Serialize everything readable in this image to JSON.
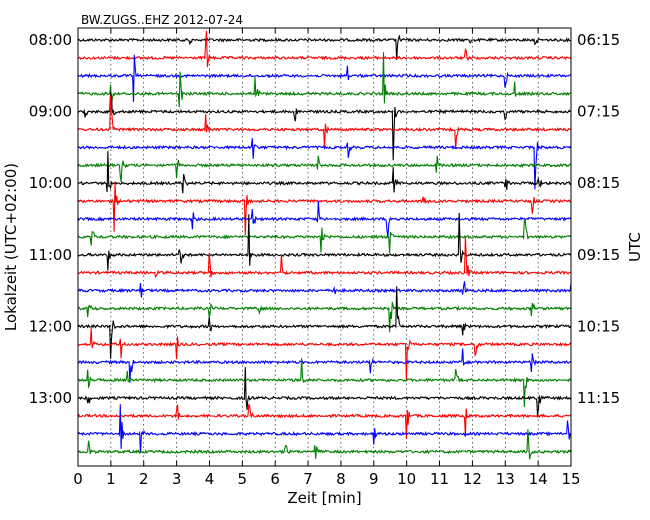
{
  "chart_data": {
    "type": "line",
    "title": "BW.ZUGS..EHZ 2012-07-24",
    "xlabel": "Zeit  [min]",
    "ylabel_left": "Lokalzeit (UTC+02:00)",
    "ylabel_right": "UTC",
    "xlim": [
      0,
      15
    ],
    "x_ticks": [
      0,
      1,
      2,
      3,
      4,
      5,
      6,
      7,
      8,
      9,
      10,
      11,
      12,
      13,
      14,
      15
    ],
    "x_tick_labels": [
      "0",
      "1",
      "2",
      "3",
      "4",
      "5",
      "6",
      "7",
      "8",
      "9",
      "10",
      "11",
      "12",
      "13",
      "14",
      "15"
    ],
    "y_tick_labels_left": [
      "08:00",
      "09:00",
      "10:00",
      "11:00",
      "12:00",
      "13:00"
    ],
    "y_tick_labels_right": [
      "06:15",
      "07:15",
      "08:15",
      "09:15",
      "10:15",
      "11:15"
    ],
    "grid": true,
    "trace_minutes": 15,
    "line_colors": [
      "#000000",
      "#ff0000",
      "#0000ff",
      "#008000"
    ],
    "traces_first_local_time": "08:00",
    "traces_last_local_time": "13:45",
    "events": [
      [
        {
          "x": 3.4,
          "a": 0.3
        },
        {
          "x": 9.7,
          "a": 0.7
        },
        {
          "x": 11.9,
          "a": 0.25
        },
        {
          "x": 13.9,
          "a": 0.3
        }
      ],
      [
        {
          "x": 3.9,
          "a": 1.2
        },
        {
          "x": 11.8,
          "a": 0.3
        }
      ],
      [
        {
          "x": 1.7,
          "a": 1.0
        },
        {
          "x": 8.2,
          "a": 0.5
        },
        {
          "x": 13.0,
          "a": 0.4
        }
      ],
      [
        {
          "x": 1.0,
          "a": 0.6
        },
        {
          "x": 3.1,
          "a": 1.5
        },
        {
          "x": 5.4,
          "a": 1.2
        },
        {
          "x": 9.3,
          "a": 1.2
        },
        {
          "x": 13.3,
          "a": 0.4
        }
      ],
      [
        {
          "x": 0.2,
          "a": 0.6
        },
        {
          "x": 1.0,
          "a": 1.2
        },
        {
          "x": 6.6,
          "a": 0.4
        },
        {
          "x": 9.6,
          "a": 1.4
        },
        {
          "x": 13.0,
          "a": 0.6
        }
      ],
      [
        {
          "x": 1.0,
          "a": 1.1
        },
        {
          "x": 3.9,
          "a": 0.5
        },
        {
          "x": 7.5,
          "a": 0.8
        },
        {
          "x": 11.5,
          "a": 0.6
        }
      ],
      [
        {
          "x": 5.3,
          "a": 1.2
        },
        {
          "x": 8.2,
          "a": 0.7
        },
        {
          "x": 13.9,
          "a": 1.3
        }
      ],
      [
        {
          "x": 1.3,
          "a": 0.7
        },
        {
          "x": 3.0,
          "a": 0.6
        },
        {
          "x": 7.3,
          "a": 0.5
        },
        {
          "x": 10.9,
          "a": 0.6
        }
      ],
      [
        {
          "x": 0.9,
          "a": 1.3
        },
        {
          "x": 3.2,
          "a": 0.6
        },
        {
          "x": 9.6,
          "a": 0.8
        },
        {
          "x": 13.0,
          "a": 0.6
        },
        {
          "x": 14.0,
          "a": 0.8
        }
      ],
      [
        {
          "x": 1.1,
          "a": 1.1
        },
        {
          "x": 5.1,
          "a": 1.0
        },
        {
          "x": 10.5,
          "a": 0.8
        },
        {
          "x": 13.8,
          "a": 0.8
        }
      ],
      [
        {
          "x": 3.5,
          "a": 0.4
        },
        {
          "x": 5.3,
          "a": 1.3
        },
        {
          "x": 7.3,
          "a": 0.7
        },
        {
          "x": 9.4,
          "a": 1.1
        }
      ],
      [
        {
          "x": 0.4,
          "a": 0.9
        },
        {
          "x": 7.4,
          "a": 0.7
        },
        {
          "x": 9.5,
          "a": 1.0
        },
        {
          "x": 13.6,
          "a": 0.6
        }
      ],
      [
        {
          "x": 0.9,
          "a": 1.0
        },
        {
          "x": 3.1,
          "a": 1.2
        },
        {
          "x": 5.2,
          "a": 1.2
        },
        {
          "x": 11.6,
          "a": 1.3
        }
      ],
      [
        {
          "x": 2.3,
          "a": 0.5
        },
        {
          "x": 4.0,
          "a": 0.8
        },
        {
          "x": 6.2,
          "a": 0.6
        },
        {
          "x": 11.8,
          "a": 1.2
        }
      ],
      [
        {
          "x": 1.9,
          "a": 0.6
        },
        {
          "x": 7.8,
          "a": 0.4
        },
        {
          "x": 11.7,
          "a": 1.2
        },
        {
          "x": 15.0,
          "a": 1.0
        }
      ],
      [
        {
          "x": 0.3,
          "a": 0.8
        },
        {
          "x": 4.0,
          "a": 0.5
        },
        {
          "x": 5.5,
          "a": 0.4
        },
        {
          "x": 9.5,
          "a": 0.9
        },
        {
          "x": 13.8,
          "a": 0.7
        }
      ],
      [
        {
          "x": 1.0,
          "a": 1.1
        },
        {
          "x": 4.0,
          "a": 0.5
        },
        {
          "x": 9.7,
          "a": 1.2
        },
        {
          "x": 11.7,
          "a": 0.6
        }
      ],
      [
        {
          "x": 0.4,
          "a": 0.5
        },
        {
          "x": 1.3,
          "a": 0.6
        },
        {
          "x": 3.0,
          "a": 1.0
        },
        {
          "x": 10.0,
          "a": 1.5
        },
        {
          "x": 12.1,
          "a": 0.5
        }
      ],
      [
        {
          "x": 1.6,
          "a": 0.8
        },
        {
          "x": 8.9,
          "a": 0.9
        },
        {
          "x": 11.7,
          "a": 0.5
        },
        {
          "x": 13.8,
          "a": 0.6
        }
      ],
      [
        {
          "x": 0.3,
          "a": 0.7
        },
        {
          "x": 1.5,
          "a": 0.6
        },
        {
          "x": 6.8,
          "a": 0.7
        },
        {
          "x": 11.5,
          "a": 0.6
        },
        {
          "x": 13.6,
          "a": 1.0
        }
      ],
      [
        {
          "x": 0.3,
          "a": 0.8
        },
        {
          "x": 5.1,
          "a": 1.2
        },
        {
          "x": 14.0,
          "a": 0.6
        }
      ],
      [
        {
          "x": 3.0,
          "a": 0.9
        },
        {
          "x": 5.2,
          "a": 0.6
        },
        {
          "x": 10.0,
          "a": 0.9
        },
        {
          "x": 11.8,
          "a": 0.6
        }
      ],
      [
        {
          "x": 1.3,
          "a": 1.0
        },
        {
          "x": 1.9,
          "a": 0.6
        },
        {
          "x": 9.0,
          "a": 0.5
        },
        {
          "x": 14.9,
          "a": 1.0
        }
      ],
      [
        {
          "x": 0.3,
          "a": 1.0
        },
        {
          "x": 6.3,
          "a": 0.8
        },
        {
          "x": 7.2,
          "a": 0.6
        },
        {
          "x": 13.7,
          "a": 0.7
        }
      ]
    ]
  }
}
